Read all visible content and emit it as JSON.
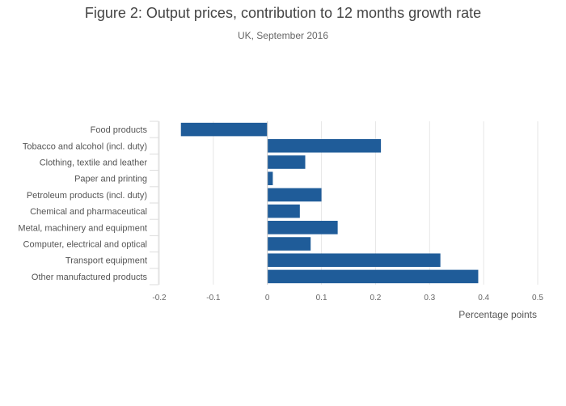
{
  "title": "Figure 2: Output prices, contribution to 12 months growth rate",
  "subtitle": "UK, September 2016",
  "chart_data": {
    "type": "bar",
    "orientation": "horizontal",
    "categories": [
      "Food products",
      "Tobacco and alcohol (incl. duty)",
      "Clothing, textile and leather",
      "Paper and printing",
      "Petroleum products (incl. duty)",
      "Chemical and pharmaceutical",
      "Metal, machinery and equipment",
      "Computer, electrical and optical",
      "Transport equipment",
      "Other manufactured products"
    ],
    "values": [
      -0.16,
      0.21,
      0.07,
      0.01,
      0.1,
      0.06,
      0.13,
      0.08,
      0.32,
      0.39
    ],
    "xlabel": "Percentage points",
    "ylabel": "",
    "xlim": [
      -0.2,
      0.5
    ],
    "xticks": [
      "-0.2",
      "-0.1",
      "0",
      "0.1",
      "0.2",
      "0.3",
      "0.4",
      "0.5"
    ],
    "grid": true,
    "bar_color": "#1f5c99"
  }
}
